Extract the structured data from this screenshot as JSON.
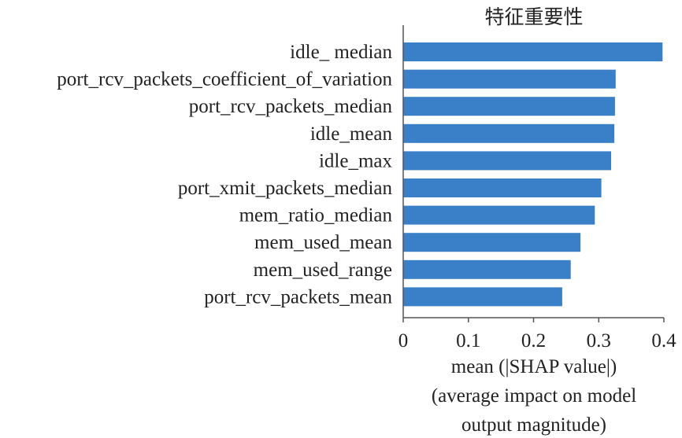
{
  "chart_data": {
    "type": "bar",
    "orientation": "horizontal",
    "title": "特征重要性",
    "categories": [
      "idle_ median",
      "port_rcv_packets_coefficient_of_variation",
      "port_rcv_packets_median",
      "idle_mean",
      "idle_max",
      "port_xmit_packets_median",
      "mem_ratio_median",
      "mem_used_mean",
      "mem_used_range",
      "port_rcv_packets_mean"
    ],
    "values": [
      0.398,
      0.326,
      0.325,
      0.324,
      0.319,
      0.304,
      0.294,
      0.272,
      0.257,
      0.244
    ],
    "xlabel_lines": [
      "mean (|SHAP value|)",
      "(average impact on model",
      "output magnitude)"
    ],
    "xlim": [
      0,
      0.4
    ],
    "xticks": [
      0,
      0.1,
      0.2,
      0.3,
      0.4
    ],
    "xtick_labels": [
      "0",
      "0.1",
      "0.2",
      "0.3",
      "0.4"
    ],
    "bar_color": "#3a80c8",
    "axis_color": "#555555",
    "grid": false,
    "legend": "none"
  }
}
